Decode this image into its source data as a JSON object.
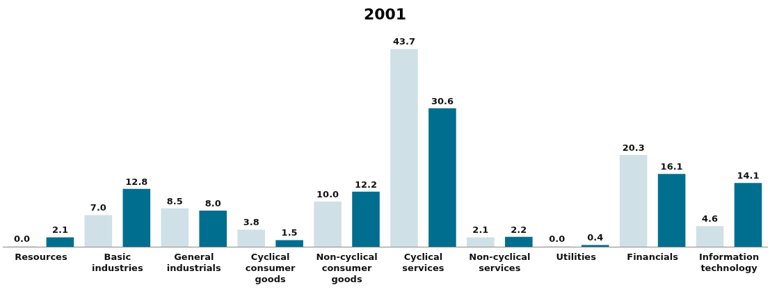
{
  "chart_data": {
    "type": "bar",
    "title": "2001",
    "categories": [
      "Resources",
      "Basic industries",
      "General industrials",
      "Cyclical consumer goods",
      "Non-cyclical consumer goods",
      "Cyclical services",
      "Non-cyclical services",
      "Utilities",
      "Financials",
      "Information technology"
    ],
    "series": [
      {
        "color": "#d0e0e7",
        "values": [
          0.0,
          7.0,
          8.5,
          3.8,
          10.0,
          43.7,
          2.1,
          0.0,
          20.3,
          4.6
        ],
        "value_labels": [
          "0.0",
          "7.0",
          "8.5",
          "3.8",
          "10.0",
          "43.7",
          "2.1",
          "0.0",
          "20.3",
          "4.6"
        ]
      },
      {
        "color": "#006e8f",
        "values": [
          2.1,
          12.8,
          8.0,
          1.5,
          12.2,
          30.6,
          2.2,
          0.4,
          16.1,
          14.1
        ],
        "value_labels": [
          "2.1",
          "12.8",
          "8.0",
          "1.5",
          "12.2",
          "30.6",
          "2.2",
          "0.4",
          "16.1",
          "14.1"
        ]
      }
    ],
    "grid": false,
    "legend": false
  }
}
